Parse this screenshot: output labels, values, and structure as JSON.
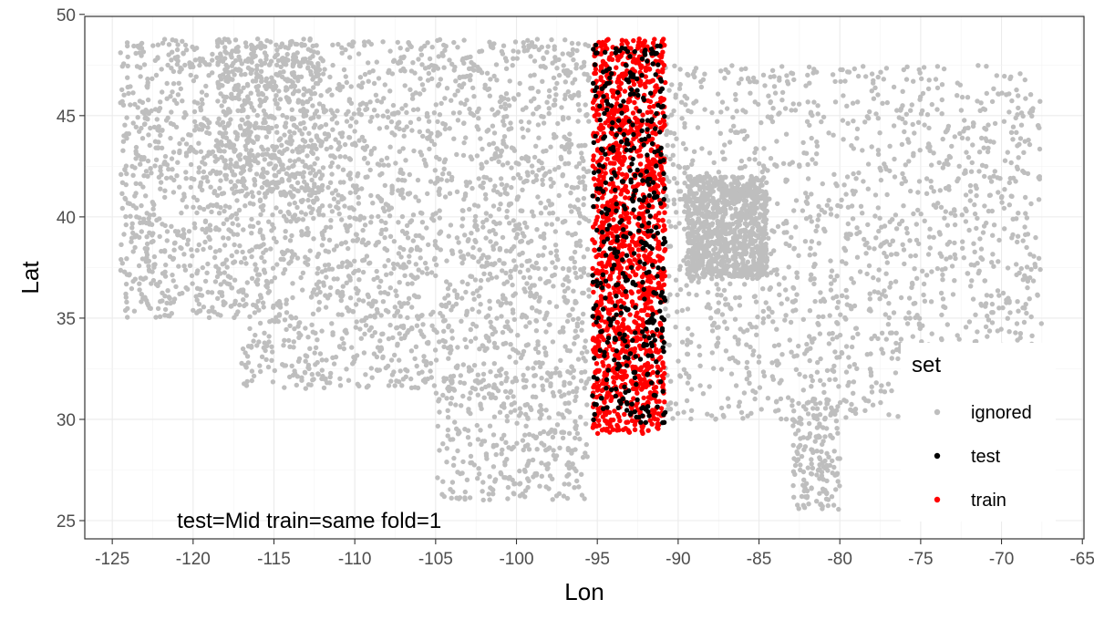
{
  "chart_data": {
    "type": "scatter",
    "title": "",
    "xlabel": "Lon",
    "ylabel": "Lat",
    "xlim": [
      -126.7,
      -64.9
    ],
    "ylim": [
      24.1,
      49.9
    ],
    "x_ticks": [
      -125,
      -120,
      -115,
      -110,
      -105,
      -100,
      -95,
      -90,
      -85,
      -80,
      -75,
      -70,
      -65
    ],
    "x_tick_labels": [
      "-125",
      "-120",
      "-115",
      "-110",
      "-105",
      "-100",
      "-95",
      "-90",
      "-85",
      "-80",
      "-75",
      "-70",
      "-65"
    ],
    "y_ticks": [
      25,
      30,
      35,
      40,
      45,
      50
    ],
    "y_tick_labels": [
      "25",
      "30",
      "35",
      "40",
      "45",
      "50"
    ],
    "grid": true,
    "legend": {
      "title": "set",
      "position": "right-inside-bottom",
      "entries": [
        {
          "label": "ignored",
          "color": "#BEBEBE"
        },
        {
          "label": "test",
          "color": "#000000"
        },
        {
          "label": "train",
          "color": "#FF0000"
        }
      ]
    },
    "annotation": "test=Mid train=same fold=1",
    "series": [
      {
        "name": "ignored",
        "color": "#BEBEBE",
        "description_regions": [
          {
            "lon": [
              -124.5,
              -117.0
            ],
            "lat": [
              35.0,
              48.8
            ]
          },
          {
            "lon": [
              -118.5,
              -112.0
            ],
            "lat": [
              41.0,
              48.8
            ]
          },
          {
            "lon": [
              -117.0,
              -95.5
            ],
            "lat": [
              31.5,
              48.8
            ]
          },
          {
            "lon": [
              -105.0,
              -95.5
            ],
            "lat": [
              26.0,
              31.5
            ]
          },
          {
            "lon": [
              -90.8,
              -67.5
            ],
            "lat": [
              30.0,
              47.5
            ]
          },
          {
            "lon": [
              -89.5,
              -84.5
            ],
            "lat": [
              37.0,
              42.0
            ]
          },
          {
            "lon": [
              -83.0,
              -80.0
            ],
            "lat": [
              25.5,
              31.0
            ]
          }
        ]
      },
      {
        "name": "train",
        "color": "#FF0000",
        "description_regions": [
          {
            "lon": [
              -95.3,
              -90.8
            ],
            "lat": [
              29.3,
              48.8
            ]
          }
        ]
      },
      {
        "name": "test",
        "color": "#000000",
        "description_regions": [
          {
            "lon": [
              -95.3,
              -90.8
            ],
            "lat": [
              29.8,
              48.5
            ]
          }
        ]
      }
    ]
  }
}
